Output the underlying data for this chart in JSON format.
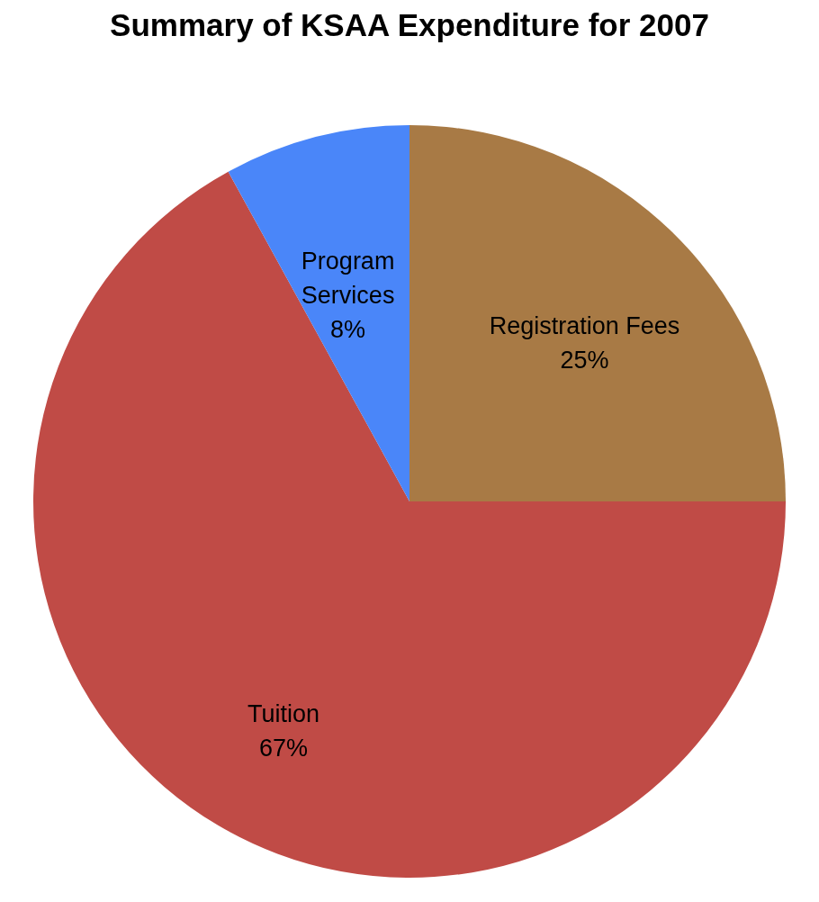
{
  "chart_data": {
    "type": "pie",
    "title": "Summary of KSAA Expenditure for 2007",
    "categories": [
      "Registration Fees",
      "Tuition",
      "Program Services"
    ],
    "values": [
      25,
      67,
      8
    ],
    "value_labels": [
      "25%",
      "67%",
      "8%"
    ],
    "colors": [
      "#a87a45",
      "#c04b46",
      "#4a86f9"
    ],
    "legend": false
  }
}
